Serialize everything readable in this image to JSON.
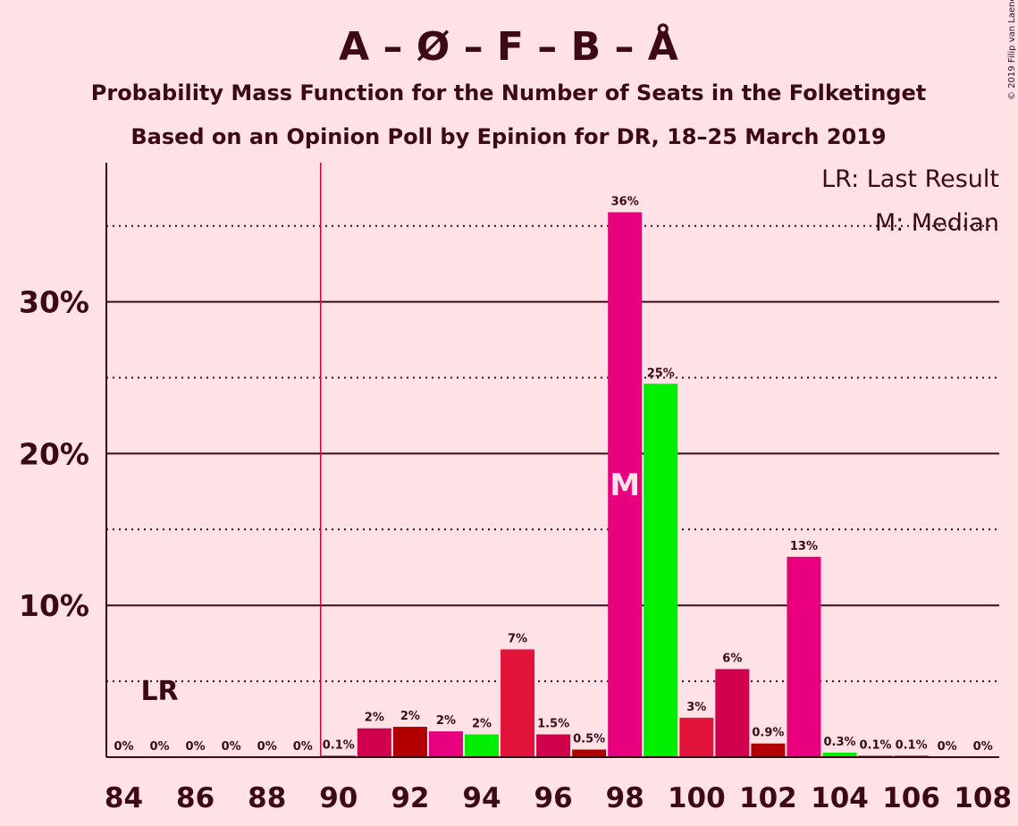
{
  "chart_data": {
    "type": "bar",
    "title": "A – Ø – F – B – Å",
    "subtitle1": "Probability Mass Function for the Number of Seats in the Folketinget",
    "subtitle2": "Based on an Opinion Poll by Epinion for DR, 18–25 March 2019",
    "copyright": "© 2019 Filip van Laenen",
    "legend": {
      "lr": "LR: Last Result",
      "median": "M: Median"
    },
    "lr_label": "LR",
    "median_label": "M",
    "last_result_seat": 89.5,
    "median_seat": 98,
    "ylim": [
      0,
      39
    ],
    "yticks": [
      {
        "value": 10,
        "label": "10%"
      },
      {
        "value": 20,
        "label": "20%"
      },
      {
        "value": 30,
        "label": "30%"
      }
    ],
    "dotted_lines": [
      5,
      15,
      25,
      35
    ],
    "xticks": [
      "84",
      "86",
      "88",
      "90",
      "92",
      "94",
      "96",
      "98",
      "100",
      "102",
      "104",
      "106",
      "108"
    ],
    "bars": [
      {
        "seat": 84,
        "value": 0,
        "label": "0%",
        "color": "#E8007E"
      },
      {
        "seat": 85,
        "value": 0,
        "label": "0%",
        "color": "#E8007E"
      },
      {
        "seat": 86,
        "value": 0,
        "label": "0%",
        "color": "#E8007E"
      },
      {
        "seat": 87,
        "value": 0,
        "label": "0%",
        "color": "#E8007E"
      },
      {
        "seat": 88,
        "value": 0,
        "label": "0%",
        "color": "#E8007E"
      },
      {
        "seat": 89,
        "value": 0,
        "label": "0%",
        "color": "#E8007E"
      },
      {
        "seat": 90,
        "value": 0.1,
        "label": "0.1%",
        "color": "#E8007E"
      },
      {
        "seat": 91,
        "value": 1.9,
        "label": "2%",
        "color": "#D0004C"
      },
      {
        "seat": 92,
        "value": 2.0,
        "label": "2%",
        "color": "#B20000"
      },
      {
        "seat": 93,
        "value": 1.7,
        "label": "2%",
        "color": "#E8007E"
      },
      {
        "seat": 94,
        "value": 1.5,
        "label": "2%",
        "color": "#00EE00"
      },
      {
        "seat": 95,
        "value": 7.1,
        "label": "7%",
        "color": "#E2143C"
      },
      {
        "seat": 96,
        "value": 1.5,
        "label": "1.5%",
        "color": "#D0004C"
      },
      {
        "seat": 97,
        "value": 0.5,
        "label": "0.5%",
        "color": "#B20000"
      },
      {
        "seat": 98,
        "value": 35.9,
        "label": "36%",
        "color": "#E8007E"
      },
      {
        "seat": 99,
        "value": 24.6,
        "label": "25%",
        "color": "#00EE00"
      },
      {
        "seat": 100,
        "value": 2.6,
        "label": "3%",
        "color": "#E2143C"
      },
      {
        "seat": 101,
        "value": 5.8,
        "label": "6%",
        "color": "#D0004C"
      },
      {
        "seat": 102,
        "value": 0.9,
        "label": "0.9%",
        "color": "#B20000"
      },
      {
        "seat": 103,
        "value": 13.2,
        "label": "13%",
        "color": "#E8007E"
      },
      {
        "seat": 104,
        "value": 0.3,
        "label": "0.3%",
        "color": "#00EE00"
      },
      {
        "seat": 105,
        "value": 0.1,
        "label": "0.1%",
        "color": "#E2143C"
      },
      {
        "seat": 106,
        "value": 0.1,
        "label": "0.1%",
        "color": "#D0004C"
      },
      {
        "seat": 107,
        "value": 0,
        "label": "0%",
        "color": "#B20000"
      },
      {
        "seat": 108,
        "value": 0,
        "label": "0%",
        "color": "#E8007E"
      }
    ],
    "colors": {
      "text": "#3D0A14",
      "background": "#FFE2E6",
      "lr_line": "#C8003C"
    }
  }
}
